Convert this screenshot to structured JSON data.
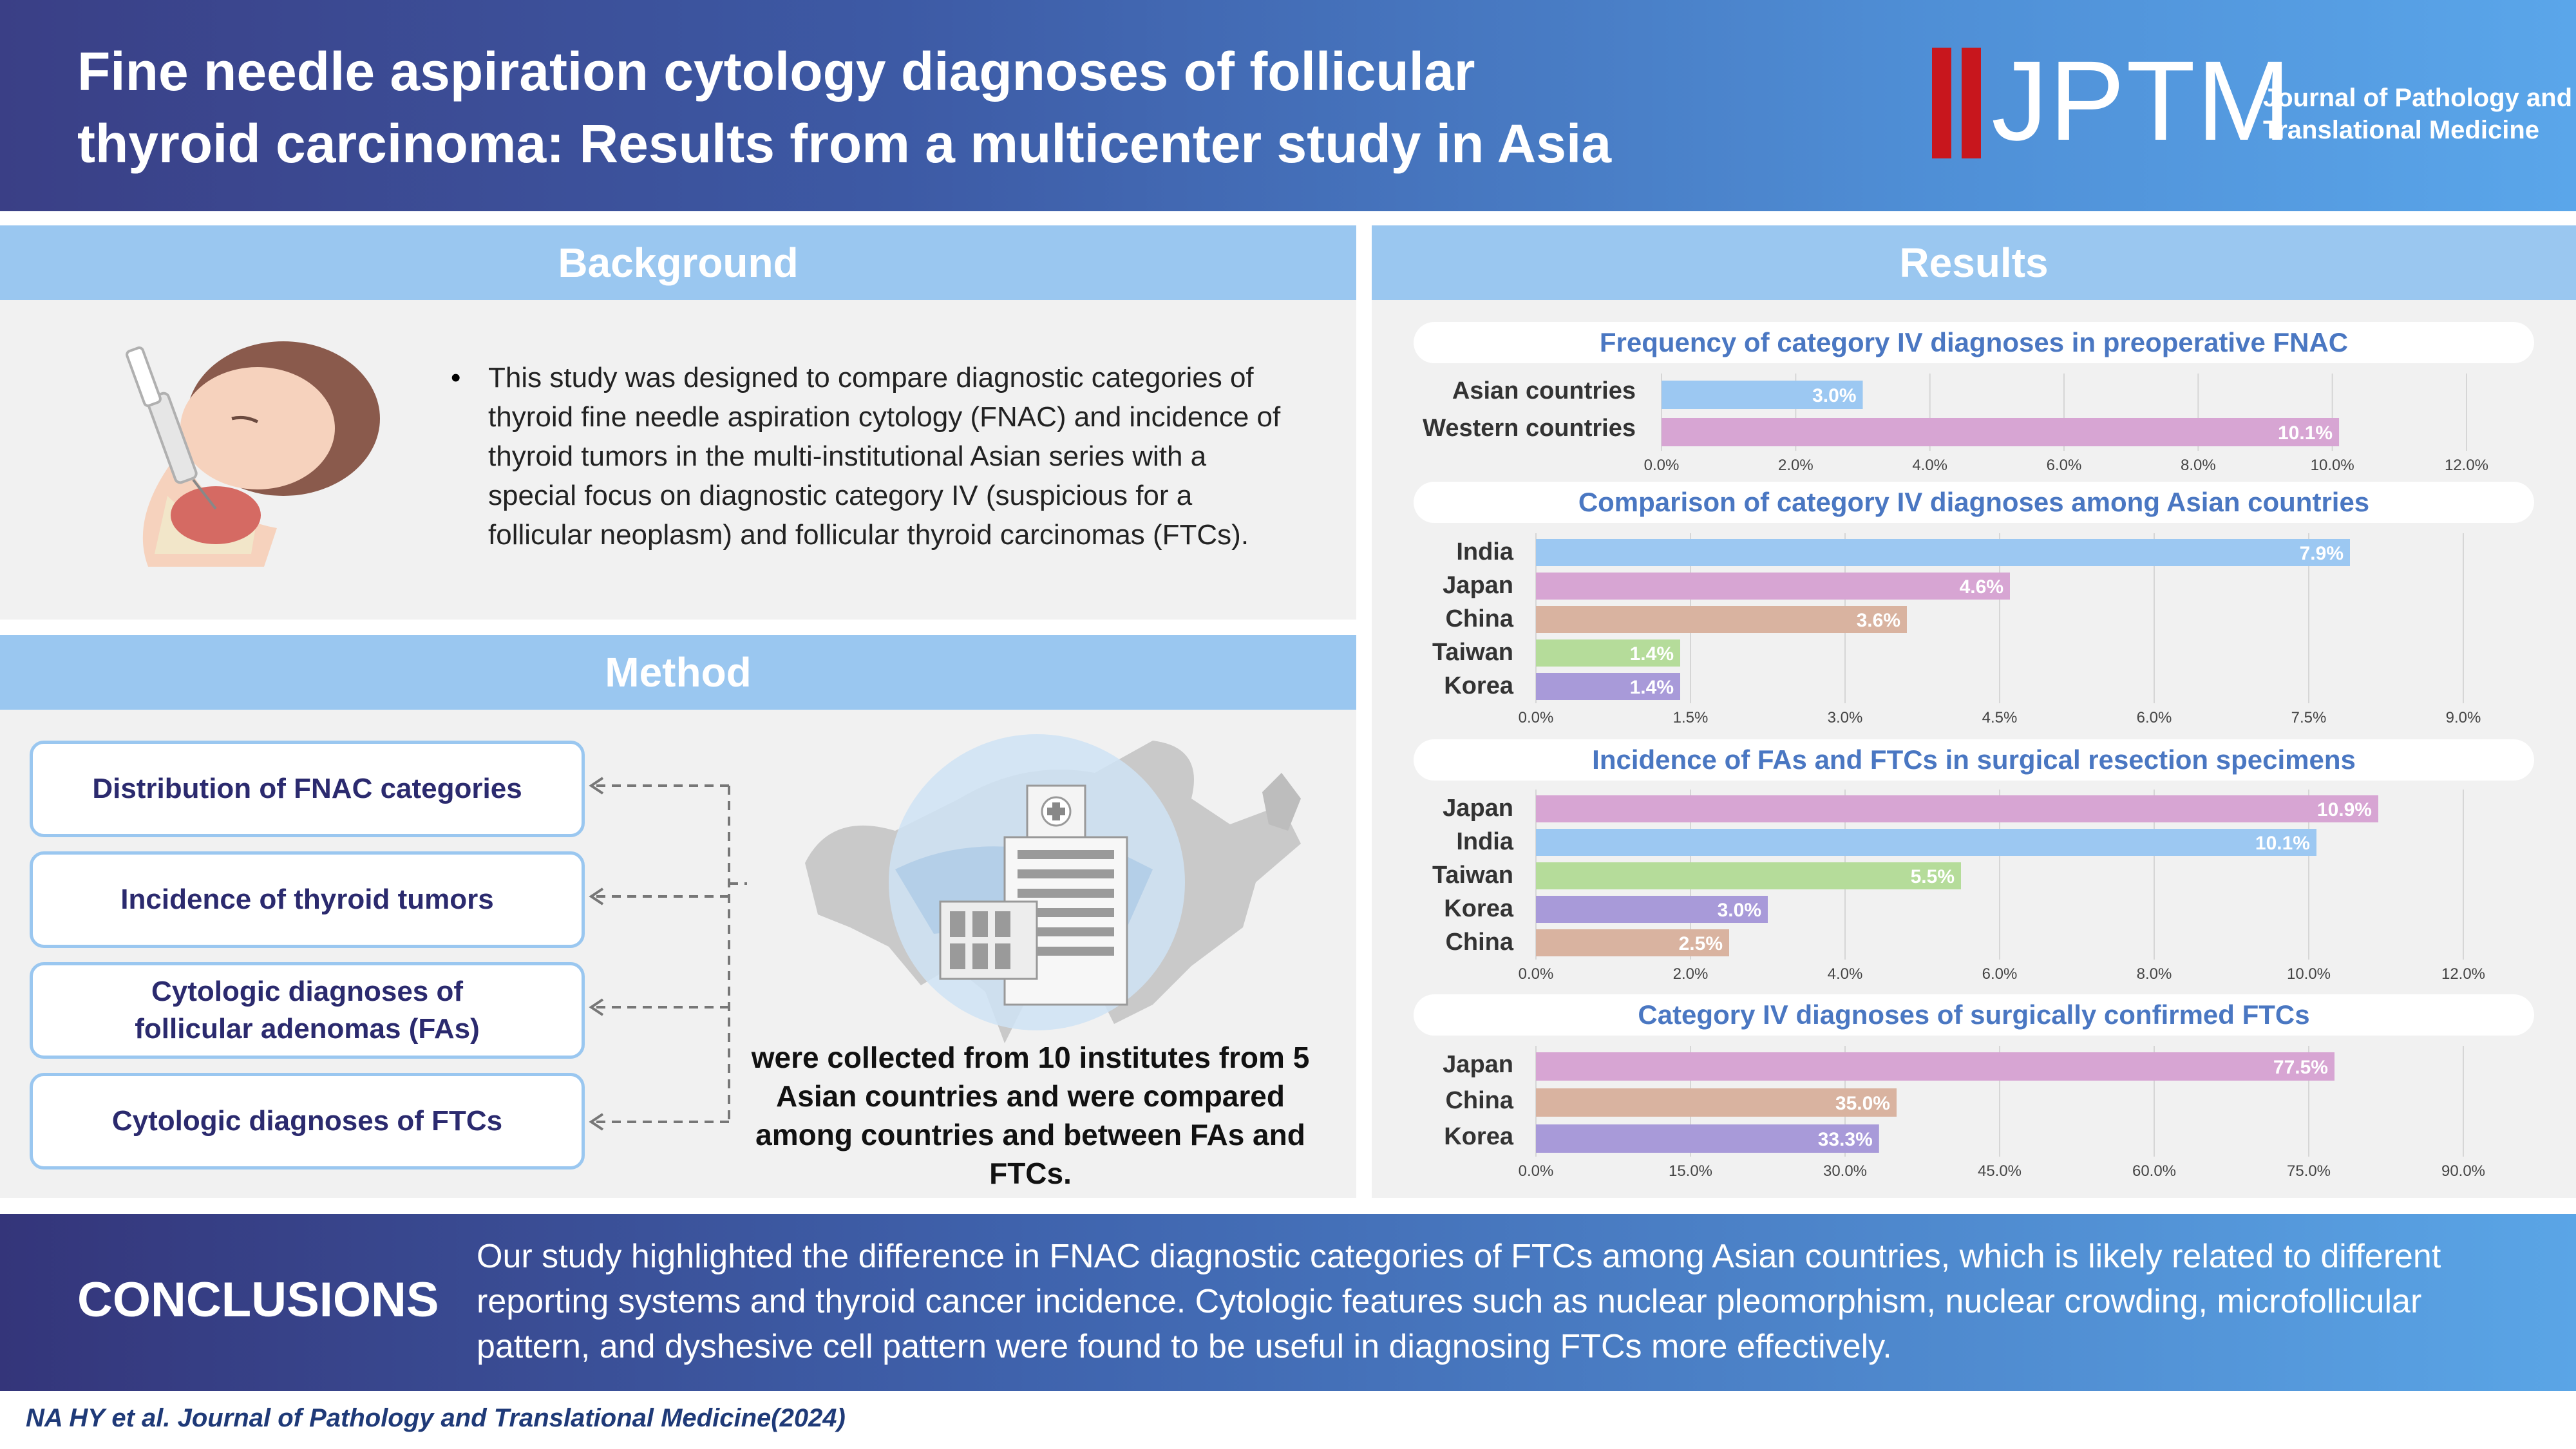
{
  "header": {
    "title_line1": "Fine needle aspiration cytology diagnoses of follicular",
    "title_line2": "thyroid carcinoma: Results from a multicenter study in Asia",
    "logo_text": "JPTM",
    "logo_sub_line1": "Journal of Pathology and",
    "logo_sub_line2": "Translational Medicine",
    "logo_color": "#c8161d"
  },
  "background": {
    "heading": "Background",
    "bullet": "This study was designed to compare diagnostic categories of thyroid fine needle aspiration cytology (FNAC) and incidence of thyroid tumors in the multi-institutional Asian series with a special focus on diagnostic category IV (suspicious for a follicular neoplasm) and follicular thyroid carcinomas (FTCs).",
    "illustration": "patient-neck-biopsy-illustration"
  },
  "method": {
    "heading": "Method",
    "boxes": [
      "Distribution of FNAC categories",
      "Incidence of thyroid tumors",
      "Cytologic diagnoses of\nfollicular adenomas (FAs)",
      "Cytologic diagnoses of FTCs"
    ],
    "note": "were collected from 10 institutes from 5 Asian countries and were compared among countries and between FAs and FTCs.",
    "illustration": "asia-map-hospital-icon"
  },
  "results": {
    "heading": "Results"
  },
  "colors": {
    "blue": "#9cc8f2",
    "pink": "#d7a5d3",
    "tan": "#d9b3a0",
    "green": "#b5dc9a",
    "purple": "#a89ad9"
  },
  "chart_data": [
    {
      "type": "bar",
      "orientation": "horizontal",
      "title": "Frequency of category IV diagnoses in preoperative FNAC",
      "categories": [
        "Asian countries",
        "Western countries"
      ],
      "values": [
        3.0,
        10.1
      ],
      "labels": [
        "3.0%",
        "10.1%"
      ],
      "colors": [
        "#9cc8f2",
        "#d7a5d3"
      ],
      "xlim": [
        0,
        12
      ],
      "ticks": [
        "0.0%",
        "2.0%",
        "4.0%",
        "6.0%",
        "8.0%",
        "10.0%",
        "12.0%"
      ],
      "grid": true
    },
    {
      "type": "bar",
      "orientation": "horizontal",
      "title": "Comparison of category IV diagnoses among Asian countries",
      "categories": [
        "India",
        "Japan",
        "China",
        "Taiwan",
        "Korea"
      ],
      "values": [
        7.9,
        4.6,
        3.6,
        1.4,
        1.4
      ],
      "labels": [
        "7.9%",
        "4.6%",
        "3.6%",
        "1.4%",
        "1.4%"
      ],
      "colors": [
        "#9cc8f2",
        "#d7a5d3",
        "#d9b3a0",
        "#b5dc9a",
        "#a89ad9"
      ],
      "xlim": [
        0,
        9
      ],
      "ticks": [
        "0.0%",
        "1.5%",
        "3.0%",
        "4.5%",
        "6.0%",
        "7.5%",
        "9.0%"
      ],
      "grid": true
    },
    {
      "type": "bar",
      "orientation": "horizontal",
      "title": "Incidence of FAs and FTCs in surgical resection specimens",
      "categories": [
        "Japan",
        "India",
        "Taiwan",
        "Korea",
        "China"
      ],
      "values": [
        10.9,
        10.1,
        5.5,
        3.0,
        2.5
      ],
      "labels": [
        "10.9%",
        "10.1%",
        "5.5%",
        "3.0%",
        "2.5%"
      ],
      "colors": [
        "#d7a5d3",
        "#9cc8f2",
        "#b5dc9a",
        "#a89ad9",
        "#d9b3a0"
      ],
      "xlim": [
        0,
        12
      ],
      "ticks": [
        "0.0%",
        "2.0%",
        "4.0%",
        "6.0%",
        "8.0%",
        "10.0%",
        "12.0%"
      ],
      "grid": true
    },
    {
      "type": "bar",
      "orientation": "horizontal",
      "title": "Category IV diagnoses of surgically confirmed FTCs",
      "categories": [
        "Japan",
        "China",
        "Korea"
      ],
      "values": [
        77.5,
        35.0,
        33.3
      ],
      "labels": [
        "77.5%",
        "35.0%",
        "33.3%"
      ],
      "colors": [
        "#d7a5d3",
        "#d9b3a0",
        "#a89ad9"
      ],
      "xlim": [
        0,
        90
      ],
      "ticks": [
        "0.0%",
        "15.0%",
        "30.0%",
        "45.0%",
        "60.0%",
        "75.0%",
        "90.0%"
      ],
      "grid": true
    }
  ],
  "conclusions": {
    "label": "CONCLUSIONS",
    "text": "Our study highlighted the difference in FNAC diagnostic categories of FTCs among Asian countries, which is likely related to different reporting systems and thyroid cancer incidence. Cytologic features such as nuclear pleomorphism, nuclear crowding, microfollicular pattern, and dyshesive cell pattern were found to be useful in diagnosing FTCs more effectively."
  },
  "citation": "NA HY et al. Journal of Pathology and Translational Medicine(2024)"
}
